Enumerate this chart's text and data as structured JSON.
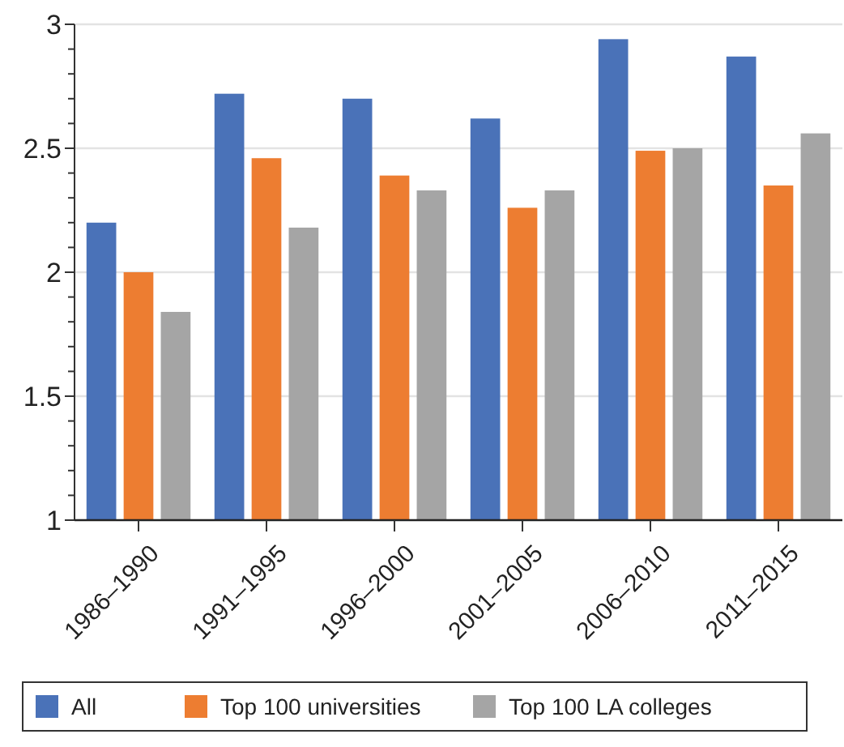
{
  "chart_data": {
    "type": "bar",
    "categories": [
      "1986–1990",
      "1991–1995",
      "1996–2000",
      "2001–2005",
      "2006–2010",
      "2011–2015"
    ],
    "series": [
      {
        "name": "All",
        "color": "#4a72b8",
        "values": [
          2.2,
          2.72,
          2.7,
          2.62,
          2.94,
          2.87
        ]
      },
      {
        "name": "Top 100 universities",
        "color": "#ed7d31",
        "values": [
          2.0,
          2.46,
          2.39,
          2.26,
          2.49,
          2.35
        ]
      },
      {
        "name": "Top 100 LA colleges",
        "color": "#a5a5a5",
        "values": [
          1.84,
          2.18,
          2.33,
          2.33,
          2.5,
          2.56
        ]
      }
    ],
    "ylim": [
      1,
      3
    ],
    "yticks": [
      1,
      {
        "value": 1.1,
        "label": null
      },
      {
        "value": 1.2,
        "label": null
      },
      {
        "value": 1.3,
        "label": null
      },
      {
        "value": 1.4,
        "label": null
      },
      1.5,
      {
        "value": 1.6,
        "label": null
      },
      {
        "value": 1.7,
        "label": null
      },
      {
        "value": 1.8,
        "label": null
      },
      {
        "value": 1.9,
        "label": null
      },
      2,
      {
        "value": 2.1,
        "label": null
      },
      {
        "value": 2.2,
        "label": null
      },
      {
        "value": 2.3,
        "label": null
      },
      {
        "value": 2.4,
        "label": null
      },
      2.5,
      {
        "value": 2.6,
        "label": null
      },
      {
        "value": 2.7,
        "label": null
      },
      {
        "value": 2.8,
        "label": null
      },
      {
        "value": 2.9,
        "label": null
      },
      3
    ],
    "grid": "y",
    "legend": "bottom"
  }
}
